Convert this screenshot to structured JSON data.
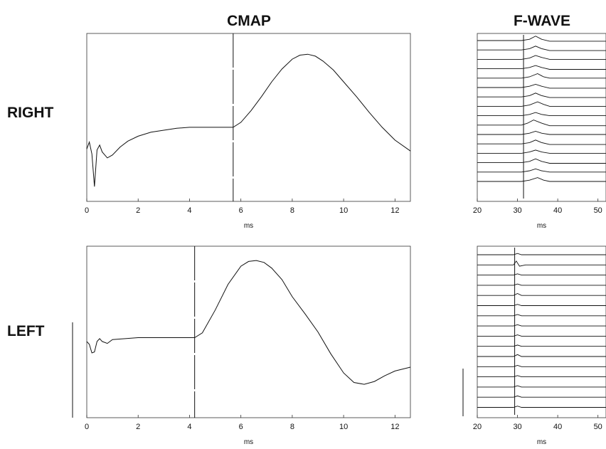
{
  "column_titles": {
    "cmap": "CMAP",
    "fwave": "F-WAVE"
  },
  "row_titles": {
    "right": "RIGHT",
    "left": "LEFT"
  },
  "chart_data": [
    {
      "id": "right-cmap",
      "type": "line",
      "title": "",
      "xlabel": "ms",
      "xlim": [
        0,
        12.6
      ],
      "xticks": [
        0,
        2,
        4,
        6,
        8,
        10,
        12
      ],
      "onset_marker_ms": 5.7,
      "series": [
        {
          "x": [
            0,
            0.1,
            0.2,
            0.3,
            0.4,
            0.5,
            0.6,
            0.8,
            1.0,
            1.3,
            1.6,
            2.0,
            2.5,
            3.0,
            3.5,
            4.0,
            4.5,
            5.0,
            5.7,
            6.0,
            6.4,
            6.8,
            7.2,
            7.6,
            8.0,
            8.3,
            8.6,
            8.9,
            9.2,
            9.6,
            10.0,
            10.5,
            11.0,
            11.5,
            12.0,
            12.6
          ],
          "y": [
            0.23,
            0.3,
            0.18,
            -0.15,
            0.22,
            0.27,
            0.2,
            0.14,
            0.17,
            0.25,
            0.31,
            0.36,
            0.4,
            0.42,
            0.44,
            0.45,
            0.45,
            0.45,
            0.45,
            0.5,
            0.62,
            0.76,
            0.91,
            1.04,
            1.14,
            1.18,
            1.19,
            1.17,
            1.12,
            1.03,
            0.91,
            0.76,
            0.6,
            0.45,
            0.32,
            0.21
          ]
        }
      ]
    },
    {
      "id": "left-cmap",
      "type": "line",
      "title": "",
      "xlabel": "ms",
      "xlim": [
        0,
        12.6
      ],
      "xticks": [
        0,
        2,
        4,
        6,
        8,
        10,
        12
      ],
      "onset_marker_ms": 4.2,
      "series": [
        {
          "x": [
            0,
            0.1,
            0.2,
            0.3,
            0.4,
            0.5,
            0.6,
            0.8,
            1.0,
            1.5,
            2.0,
            2.5,
            3.0,
            3.5,
            4.2,
            4.5,
            5.0,
            5.5,
            6.0,
            6.3,
            6.6,
            6.9,
            7.2,
            7.6,
            8.0,
            8.5,
            9.0,
            9.5,
            10.0,
            10.4,
            10.8,
            11.2,
            11.6,
            12.0,
            12.6
          ],
          "y": [
            0.45,
            0.42,
            0.33,
            0.34,
            0.45,
            0.48,
            0.45,
            0.43,
            0.47,
            0.48,
            0.49,
            0.49,
            0.49,
            0.49,
            0.49,
            0.54,
            0.78,
            1.05,
            1.24,
            1.29,
            1.3,
            1.28,
            1.22,
            1.1,
            0.92,
            0.74,
            0.55,
            0.32,
            0.12,
            0.02,
            0.0,
            0.03,
            0.09,
            0.14,
            0.18
          ]
        }
      ]
    },
    {
      "id": "right-fwave",
      "type": "line",
      "title": "",
      "xlabel": "ms",
      "xlim": [
        20,
        52
      ],
      "xticks": [
        20,
        30,
        40,
        50
      ],
      "latency_marker_ms": 31.5,
      "trace_count": 16,
      "traces": [
        {
          "x": [
            20,
            31,
            33,
            34.5,
            36,
            38,
            52
          ],
          "y": [
            0,
            0,
            0.2,
            0.7,
            0.2,
            -0.1,
            -0.1
          ]
        },
        {
          "x": [
            20,
            31,
            33,
            34.5,
            36,
            38,
            52
          ],
          "y": [
            0,
            0,
            0.2,
            0.6,
            0.2,
            -0.1,
            -0.1
          ]
        },
        {
          "x": [
            20,
            31,
            33,
            34.5,
            36,
            38,
            52
          ],
          "y": [
            0,
            0,
            0.2,
            0.6,
            0.3,
            0,
            0
          ]
        },
        {
          "x": [
            20,
            31,
            33,
            34.5,
            36,
            38,
            52
          ],
          "y": [
            0,
            0,
            0.2,
            0.5,
            0.2,
            -0.1,
            -0.1
          ]
        },
        {
          "x": [
            20,
            31,
            33,
            35,
            36.5,
            38,
            52
          ],
          "y": [
            0,
            0,
            0.2,
            0.7,
            0.2,
            0,
            0
          ]
        },
        {
          "x": [
            20,
            31,
            33,
            34.5,
            36,
            38,
            52
          ],
          "y": [
            0,
            0,
            0.2,
            0.5,
            0.2,
            -0.1,
            -0.1
          ]
        },
        {
          "x": [
            20,
            31,
            33,
            34.5,
            36,
            38,
            52
          ],
          "y": [
            0,
            0,
            0.2,
            0.6,
            0.2,
            -0.1,
            -0.1
          ]
        },
        {
          "x": [
            20,
            31,
            33,
            35,
            36.5,
            38,
            52
          ],
          "y": [
            0,
            0,
            0.2,
            0.7,
            0.3,
            0,
            0
          ]
        },
        {
          "x": [
            20,
            31,
            33,
            34.5,
            36,
            38,
            52
          ],
          "y": [
            0,
            0,
            0.2,
            0.5,
            0.2,
            0,
            0
          ]
        },
        {
          "x": [
            20,
            31,
            32.5,
            34,
            36,
            38,
            52
          ],
          "y": [
            0,
            0,
            0.3,
            0.8,
            0.3,
            -0.1,
            -0.1
          ]
        },
        {
          "x": [
            20,
            31,
            33,
            34.5,
            36,
            38,
            52
          ],
          "y": [
            0,
            0,
            0.2,
            0.5,
            0.2,
            0,
            0
          ]
        },
        {
          "x": [
            20,
            31,
            33,
            34.5,
            36,
            38,
            52
          ],
          "y": [
            0,
            0,
            0.2,
            0.6,
            0.2,
            -0.1,
            -0.1
          ]
        },
        {
          "x": [
            20,
            31,
            33,
            34.5,
            36,
            38,
            52
          ],
          "y": [
            0,
            0,
            0.2,
            0.5,
            0.2,
            0,
            0
          ]
        },
        {
          "x": [
            20,
            31,
            33,
            34.5,
            36,
            38,
            52
          ],
          "y": [
            0,
            0,
            0.2,
            0.6,
            0.2,
            -0.1,
            -0.1
          ]
        },
        {
          "x": [
            20,
            31,
            33,
            34.5,
            36,
            38,
            52
          ],
          "y": [
            0,
            0,
            0.2,
            0.5,
            0.2,
            0,
            0
          ]
        },
        {
          "x": [
            20,
            31,
            33,
            35,
            36.5,
            38,
            52
          ],
          "y": [
            0,
            0,
            0.2,
            0.6,
            0.2,
            0,
            0
          ]
        }
      ]
    },
    {
      "id": "left-fwave",
      "type": "line",
      "title": "",
      "xlabel": "ms",
      "xlim": [
        20,
        52
      ],
      "xticks": [
        20,
        30,
        40,
        50
      ],
      "latency_marker_ms": 29.3,
      "trace_count": 16,
      "traces": [
        {
          "x": [
            20,
            29,
            30,
            31,
            33,
            52
          ],
          "y": [
            0,
            0,
            0.2,
            0,
            0,
            0
          ]
        },
        {
          "x": [
            20,
            29,
            29.7,
            30.5,
            32,
            52
          ],
          "y": [
            0,
            0,
            0.6,
            -0.2,
            0,
            0
          ]
        },
        {
          "x": [
            20,
            29,
            30,
            31,
            33,
            52
          ],
          "y": [
            0,
            0,
            0.2,
            0,
            0,
            0
          ]
        },
        {
          "x": [
            20,
            29,
            30,
            31,
            33,
            52
          ],
          "y": [
            0,
            0,
            0.2,
            0,
            0,
            0
          ]
        },
        {
          "x": [
            20,
            29,
            30,
            31,
            33,
            52
          ],
          "y": [
            0,
            0,
            0.3,
            0,
            0,
            0
          ]
        },
        {
          "x": [
            20,
            29,
            30,
            31,
            33,
            52
          ],
          "y": [
            0,
            0,
            0.2,
            0,
            0,
            0
          ]
        },
        {
          "x": [
            20,
            29,
            30,
            31,
            33,
            52
          ],
          "y": [
            0,
            0,
            0.2,
            0,
            0,
            0
          ]
        },
        {
          "x": [
            20,
            29,
            30,
            31,
            33,
            52
          ],
          "y": [
            0,
            0,
            0.2,
            0,
            0,
            0
          ]
        },
        {
          "x": [
            20,
            29,
            30,
            31,
            33,
            52
          ],
          "y": [
            0,
            0,
            0.2,
            0,
            0,
            0
          ]
        },
        {
          "x": [
            20,
            29,
            30,
            31,
            33,
            52
          ],
          "y": [
            0,
            0,
            0.2,
            0,
            0,
            0
          ]
        },
        {
          "x": [
            20,
            29,
            30,
            31,
            33,
            52
          ],
          "y": [
            0,
            0,
            0.3,
            0,
            0,
            0
          ]
        },
        {
          "x": [
            20,
            29,
            30,
            31,
            33,
            52
          ],
          "y": [
            0,
            0,
            0.2,
            0,
            0,
            0
          ]
        },
        {
          "x": [
            20,
            29,
            30,
            31,
            33,
            52
          ],
          "y": [
            0,
            0,
            0.2,
            0,
            0,
            0
          ]
        },
        {
          "x": [
            20,
            29,
            30,
            31,
            33,
            52
          ],
          "y": [
            0,
            0,
            0.2,
            0,
            0,
            0
          ]
        },
        {
          "x": [
            20,
            29,
            30,
            31,
            33,
            52
          ],
          "y": [
            0,
            0,
            0.2,
            0,
            0,
            0
          ]
        },
        {
          "x": [
            20,
            29,
            30,
            31,
            33,
            52
          ],
          "y": [
            0,
            0,
            0.2,
            0,
            0,
            0
          ]
        }
      ]
    }
  ]
}
